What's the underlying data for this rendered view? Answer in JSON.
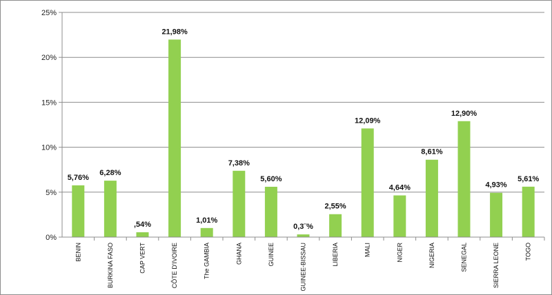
{
  "chart_data": {
    "type": "bar",
    "title": "",
    "xlabel": "",
    "ylabel": "",
    "ylim": [
      0,
      25
    ],
    "y_ticks": [
      "0%",
      "5%",
      "10%",
      "15%",
      "20%",
      "25%"
    ],
    "y_tick_values": [
      0,
      5,
      10,
      15,
      20,
      25
    ],
    "grid": "horizontal",
    "bar_color": "#92d050",
    "categories": [
      "BENIN",
      "BURKINA FASO",
      "CAP VERT",
      "CÔTE D'IVOIRE",
      "The GAMBIA",
      "GHANA",
      "GUINEE",
      "GUINEE-BISSAU",
      "LIBERIA",
      "MALI",
      "NIGER",
      "NIGERIA",
      "SENEGAL",
      "SIERRA LEONE",
      "TOGO"
    ],
    "values": [
      5.76,
      6.28,
      0.54,
      21.98,
      1.01,
      7.38,
      5.6,
      0.3,
      2.55,
      12.09,
      4.64,
      8.61,
      12.9,
      4.93,
      5.61
    ],
    "data_labels": [
      "5,76%",
      "6,28%",
      ",54%",
      "21,98%",
      "1,01%",
      "7,38%",
      "5,60%",
      "0,3¨%",
      "2,55%",
      "12,09%",
      "4,64%",
      "8,61%",
      "12,90%",
      "4,93%",
      "5,61%"
    ]
  }
}
